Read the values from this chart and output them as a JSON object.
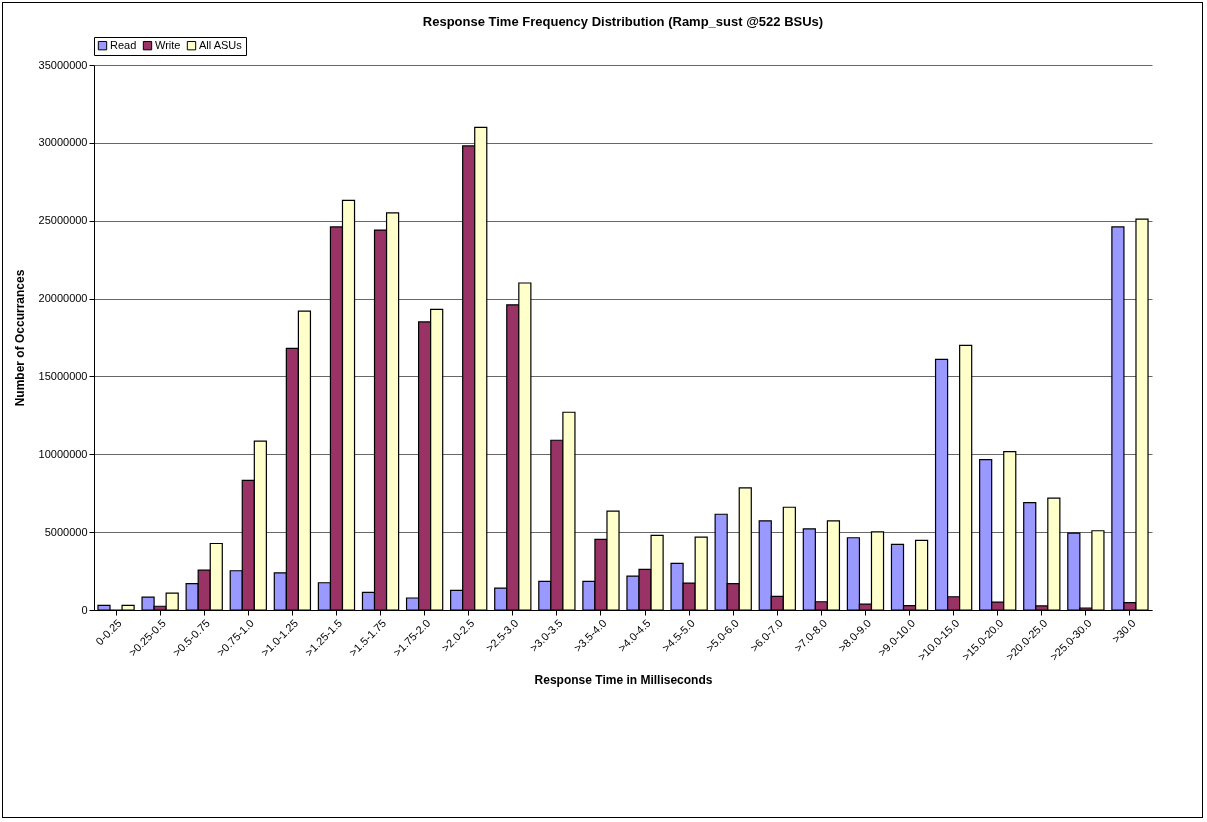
{
  "chart_data": {
    "type": "bar",
    "title": "Response Time Frequency Distribution (Ramp_sust @522 BSUs)",
    "xlabel": "Response Time in Milliseconds",
    "ylabel": "Number of Occurrances",
    "categories": [
      "0-0.25",
      ">0.25-0.5",
      ">0.5-0.75",
      ">0.75-1.0",
      ">1.0-1.25",
      ">1.25-1.5",
      ">1.5-1.75",
      ">1.75-2.0",
      ">2.0-2.5",
      ">2.5-3.0",
      ">3.0-3.5",
      ">3.5-4.0",
      ">4.0-4.5",
      ">4.5-5.0",
      ">5.0-6.0",
      ">6.0-7.0",
      ">7.0-8.0",
      ">8.0-9.0",
      ">9.0-10.0",
      ">10.0-15.0",
      ">15.0-20.0",
      ">20.0-25.0",
      ">25.0-30.0",
      ">30.0"
    ],
    "series": [
      {
        "name": "Read",
        "color": "#9999ff",
        "values": [
          300000,
          830000,
          1690000,
          2520000,
          2390000,
          1750000,
          1130000,
          770000,
          1260000,
          1410000,
          1840000,
          1840000,
          2180000,
          2990000,
          6150000,
          5730000,
          5210000,
          4640000,
          4210000,
          16100000,
          9660000,
          6900000,
          4940000,
          24600000
        ]
      },
      {
        "name": "Write",
        "color": "#993366",
        "values": [
          0,
          240000,
          2560000,
          8330000,
          16800000,
          24600000,
          24400000,
          18500000,
          29800000,
          19600000,
          10900000,
          4530000,
          2610000,
          1730000,
          1690000,
          880000,
          530000,
          380000,
          280000,
          850000,
          510000,
          260000,
          130000,
          470000
        ]
      },
      {
        "name": "All ASUs",
        "color": "#ffffcc",
        "values": [
          300000,
          1090000,
          4270000,
          10850000,
          19200000,
          26300000,
          25500000,
          19300000,
          31000000,
          21000000,
          12700000,
          6350000,
          4790000,
          4680000,
          7840000,
          6600000,
          5730000,
          5020000,
          4470000,
          17000000,
          10170000,
          7180000,
          5090000,
          25100000
        ]
      }
    ],
    "ylim": [
      0,
      35000000
    ],
    "yticks": [
      0,
      5000000,
      10000000,
      15000000,
      20000000,
      25000000,
      30000000,
      35000000
    ],
    "grid": "y",
    "legend": "top"
  }
}
